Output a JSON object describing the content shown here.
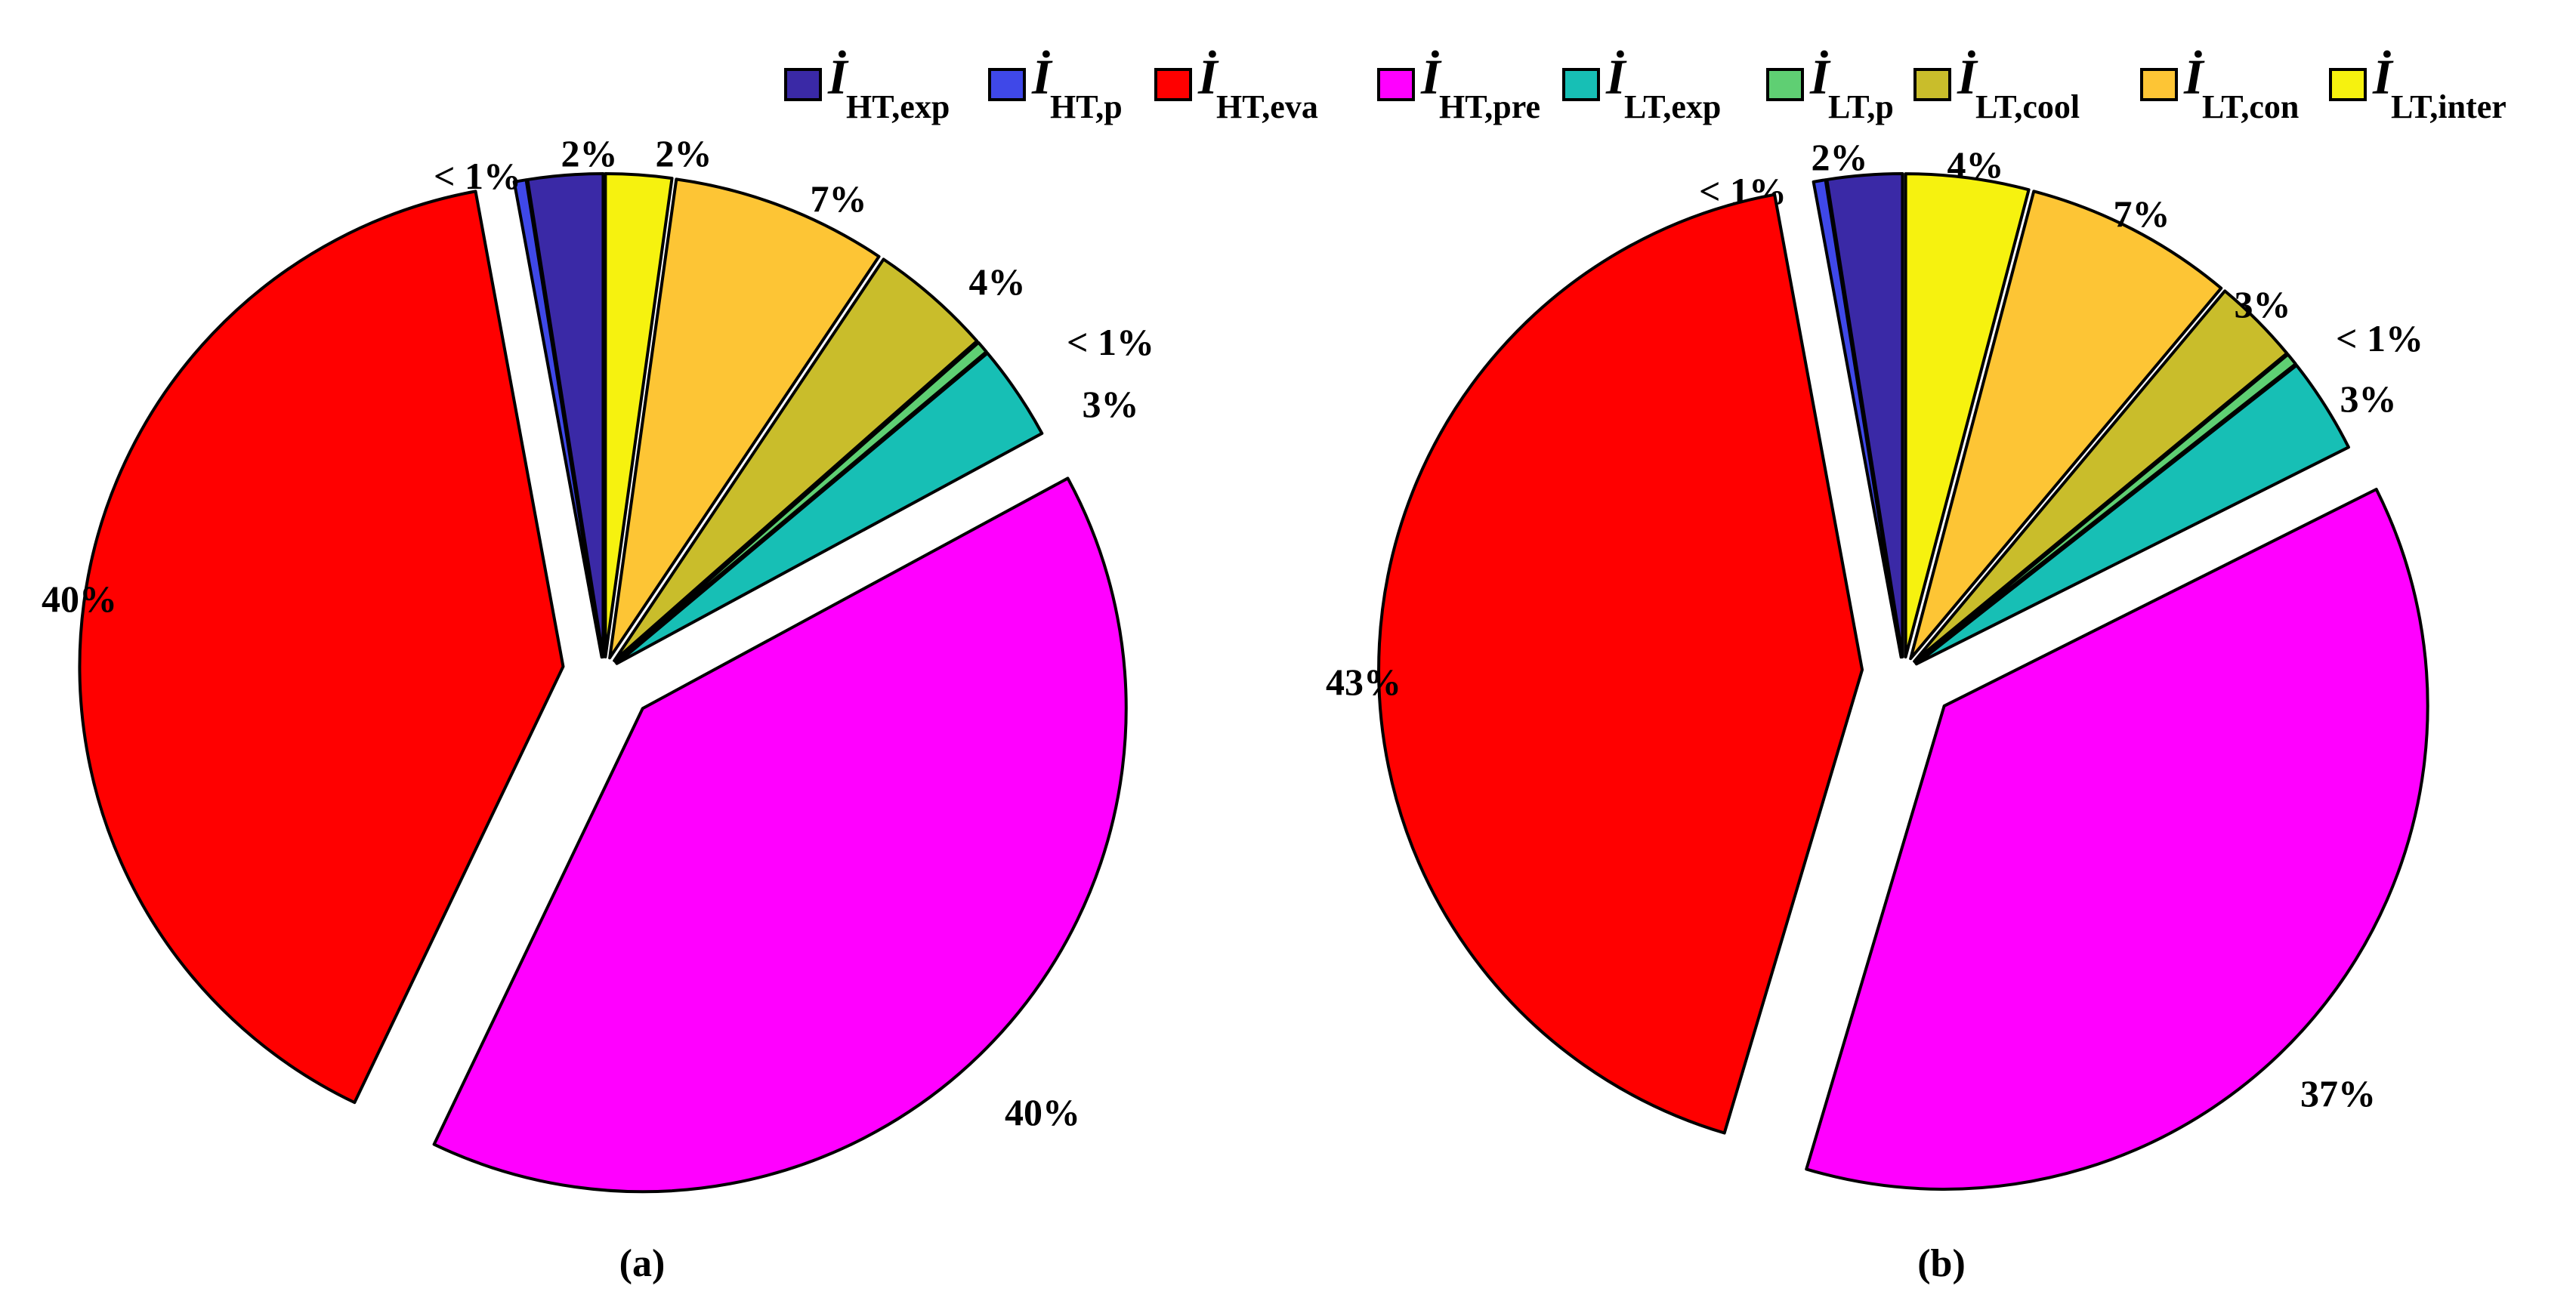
{
  "chart_data": [
    {
      "type": "pie",
      "caption": "(a)",
      "legend": "top",
      "slices": [
        {
          "key": "HT_exp",
          "value": 2.5,
          "label": "2%"
        },
        {
          "key": "HT_p",
          "value": 0.4,
          "label": "< 1%"
        },
        {
          "key": "HT_eva",
          "value": 40,
          "label": "40%"
        },
        {
          "key": "HT_pre",
          "value": 40,
          "label": "40%"
        },
        {
          "key": "LT_exp",
          "value": 3.2,
          "label": "3%"
        },
        {
          "key": "LT_p",
          "value": 0.4,
          "label": "< 1%"
        },
        {
          "key": "LT_cool",
          "value": 4.1,
          "label": "4%"
        },
        {
          "key": "LT_con",
          "value": 7.2,
          "label": "7%"
        },
        {
          "key": "LT_inter",
          "value": 2.2,
          "label": "2%"
        }
      ]
    },
    {
      "type": "pie",
      "caption": "(b)",
      "legend": "top",
      "slices": [
        {
          "key": "HT_exp",
          "value": 2.5,
          "label": "2%"
        },
        {
          "key": "HT_p",
          "value": 0.4,
          "label": "< 1%"
        },
        {
          "key": "HT_eva",
          "value": 42.5,
          "label": "43%"
        },
        {
          "key": "HT_pre",
          "value": 37,
          "label": "37%"
        },
        {
          "key": "LT_exp",
          "value": 3.2,
          "label": "3%"
        },
        {
          "key": "LT_p",
          "value": 0.4,
          "label": "< 1%"
        },
        {
          "key": "LT_cool",
          "value": 2.9,
          "label": "3%"
        },
        {
          "key": "LT_con",
          "value": 7.0,
          "label": "7%"
        },
        {
          "key": "LT_inter",
          "value": 4.1,
          "label": "4%"
        }
      ]
    }
  ],
  "legend": [
    {
      "key": "HT_exp",
      "symbol": "İ",
      "sub": "HT,exp",
      "color": "#3a29a6"
    },
    {
      "key": "HT_p",
      "symbol": "İ",
      "sub": "HT,p",
      "color": "#3f48e8"
    },
    {
      "key": "HT_eva",
      "symbol": "İ",
      "sub": "HT,eva",
      "color": "#ff0000"
    },
    {
      "key": "HT_pre",
      "symbol": "İ",
      "sub": "HT,pre",
      "color": "#ff00ff"
    },
    {
      "key": "LT_exp",
      "symbol": "İ",
      "sub": "LT,exp",
      "color": "#17bfb5"
    },
    {
      "key": "LT_p",
      "symbol": "İ",
      "sub": "LT,p",
      "color": "#5fcf73"
    },
    {
      "key": "LT_cool",
      "symbol": "İ",
      "sub": "LT,cool",
      "color": "#c9bd2b"
    },
    {
      "key": "LT_con",
      "symbol": "İ",
      "sub": "LT,con",
      "color": "#fdc535"
    },
    {
      "key": "LT_inter",
      "symbol": "İ",
      "sub": "LT,inter",
      "color": "#f6f20f"
    }
  ]
}
